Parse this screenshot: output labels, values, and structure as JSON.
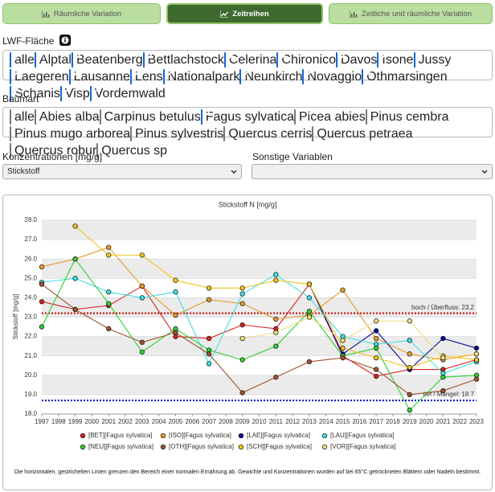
{
  "tabs": [
    {
      "label": "Räumliche Variation",
      "active": false
    },
    {
      "label": "Zeitreihen",
      "active": true
    },
    {
      "label": "Zeitliche und räumliche Variation",
      "active": false
    }
  ],
  "site_filter": {
    "label": "LWF-Fläche",
    "options": [
      {
        "label": "alle",
        "checked": true
      },
      {
        "label": "Alptal",
        "checked": true
      },
      {
        "label": "Beatenberg",
        "checked": true
      },
      {
        "label": "Bettlachstock",
        "checked": true
      },
      {
        "label": "Celerina",
        "checked": true
      },
      {
        "label": "Chironico",
        "checked": true
      },
      {
        "label": "Davos",
        "checked": true
      },
      {
        "label": "Isone",
        "checked": true
      },
      {
        "label": "Jussy",
        "checked": true
      },
      {
        "label": "Laegeren",
        "checked": true
      },
      {
        "label": "Lausanne",
        "checked": true
      },
      {
        "label": "Lens",
        "checked": true
      },
      {
        "label": "Nationalpark",
        "checked": true
      },
      {
        "label": "Neunkirch",
        "checked": true
      },
      {
        "label": "Novaggio",
        "checked": true
      },
      {
        "label": "Othmarsingen",
        "checked": true
      },
      {
        "label": "Schanis",
        "checked": true
      },
      {
        "label": "Visp",
        "checked": true
      },
      {
        "label": "Vordemwald",
        "checked": true
      }
    ]
  },
  "species_filter": {
    "label": "Baumart",
    "options": [
      {
        "label": "alle",
        "checked": false
      },
      {
        "label": "Abies alba",
        "checked": false
      },
      {
        "label": "Carpinus betulus",
        "checked": false
      },
      {
        "label": "Fagus sylvatica",
        "checked": true
      },
      {
        "label": "Picea abies",
        "checked": false
      },
      {
        "label": "Pinus cembra",
        "checked": false
      },
      {
        "label": "Pinus mugo arborea",
        "checked": false
      },
      {
        "label": "Pinus sylvestris",
        "checked": false
      },
      {
        "label": "Quercus cerris",
        "checked": false
      },
      {
        "label": "Quercus petraea",
        "checked": false
      },
      {
        "label": "Quercus robur",
        "checked": false
      },
      {
        "label": "Quercus sp",
        "checked": false
      }
    ]
  },
  "concentration": {
    "label": "Konzentrationen [mg/g]",
    "selected": "Stickstoff"
  },
  "other_variables": {
    "label": "Sonstige Variablen"
  },
  "chart_data": {
    "type": "line",
    "title": "Stickstoff N [mg/g]",
    "y_label": "Stickstoff [mg/g]",
    "x": [
      1997,
      1999,
      2001,
      2003,
      2005,
      2007,
      2009,
      2011,
      2013,
      2015,
      2017,
      2019,
      2021,
      2023
    ],
    "xlim": [
      1997,
      2023
    ],
    "xticks": [
      1997,
      1998,
      1999,
      2000,
      2001,
      2002,
      2003,
      2004,
      2005,
      2006,
      2007,
      2008,
      2009,
      2010,
      2011,
      2012,
      2013,
      2014,
      2015,
      2016,
      2017,
      2018,
      2019,
      2020,
      2021,
      2022,
      2023
    ],
    "ylim": [
      18,
      28
    ],
    "yticks": [
      {
        "value": 18,
        "label": "18.0"
      },
      {
        "value": 19,
        "label": "19.0"
      },
      {
        "value": 20,
        "label": "20.0"
      },
      {
        "value": 21,
        "label": "21.0"
      },
      {
        "value": 22,
        "label": "22.0"
      },
      {
        "value": 23,
        "label": "23.0"
      },
      {
        "value": 24,
        "label": "24.0"
      },
      {
        "value": 25,
        "label": "25.0"
      },
      {
        "value": 26,
        "label": "26.0"
      },
      {
        "value": 27,
        "label": "27.0"
      },
      {
        "value": 28,
        "label": "28.0"
      }
    ],
    "grid": true,
    "legend": "bottom",
    "reference_lines": [
      {
        "value": 23.2,
        "label": "hoch / Überfluss: 23.2",
        "color": "#d40000"
      },
      {
        "value": 18.7,
        "label": "tief / Mangel: 18.7",
        "color": "#0000cc"
      }
    ],
    "series": [
      {
        "name": "[BET][Fagus sylvatica]",
        "color": "#d62020",
        "values": [
          23.8,
          23.4,
          23.6,
          24.6,
          22.0,
          21.9,
          22.6,
          22.4,
          24.7,
          21.0,
          19.95,
          20.3,
          20.3,
          20.8
        ]
      },
      {
        "name": "[ISO][Fagus sylvatica]",
        "color": "#e89a2a",
        "values": [
          25.6,
          26.0,
          26.6,
          24.6,
          23.1,
          23.9,
          23.7,
          22.9,
          23.1,
          24.4,
          21.9,
          21.1,
          20.8,
          21.1
        ]
      },
      {
        "name": "[LAE][Fagus sylvatica]",
        "color": "#0a0a9a",
        "values": [
          null,
          null,
          null,
          null,
          null,
          null,
          null,
          null,
          24.7,
          21.1,
          22.3,
          20.3,
          21.9,
          21.4
        ]
      },
      {
        "name": "[LAU][Fagus sylvatica]",
        "color": "#3ee0e0",
        "values": [
          24.8,
          25.0,
          24.3,
          24.0,
          24.3,
          20.6,
          24.2,
          25.2,
          24.0,
          22.0,
          21.6,
          21.8,
          20.1,
          20.7
        ]
      },
      {
        "name": "[NEU][Fagus sylvatica]",
        "color": "#30d030",
        "values": [
          22.5,
          26.0,
          23.7,
          21.2,
          22.4,
          21.3,
          20.8,
          21.5,
          23.3,
          21.0,
          21.4,
          18.2,
          19.9,
          20.0
        ]
      },
      {
        "name": "[OTH][Fagus sylvatica]",
        "color": "#a0522d",
        "values": [
          24.7,
          23.4,
          22.4,
          21.7,
          22.2,
          21.1,
          19.1,
          19.9,
          20.7,
          20.9,
          20.3,
          19.0,
          19.2,
          19.8
        ]
      },
      {
        "name": "[SCH][Fagus sylvatica]",
        "color": "#f2c21e",
        "values": [
          null,
          27.7,
          26.2,
          26.2,
          24.9,
          24.5,
          24.5,
          24.9,
          24.7,
          21.4,
          20.9,
          20.4,
          21.0,
          20.8
        ]
      },
      {
        "name": "[VOR][Fagus sylvatica]",
        "color": "#eedc82",
        "values": [
          null,
          null,
          null,
          null,
          null,
          null,
          21.9,
          22.2,
          23.0,
          21.8,
          22.8,
          22.8,
          20.9,
          21.1
        ]
      }
    ],
    "note": "Die horizontalen, gestrichelten Linien grenzen den Bereich einer normalen Ernährung ab. Gewichte und Konzentrationen wurden auf bei 65°C getrockneten Blättern oder Nadeln bestimmt."
  }
}
